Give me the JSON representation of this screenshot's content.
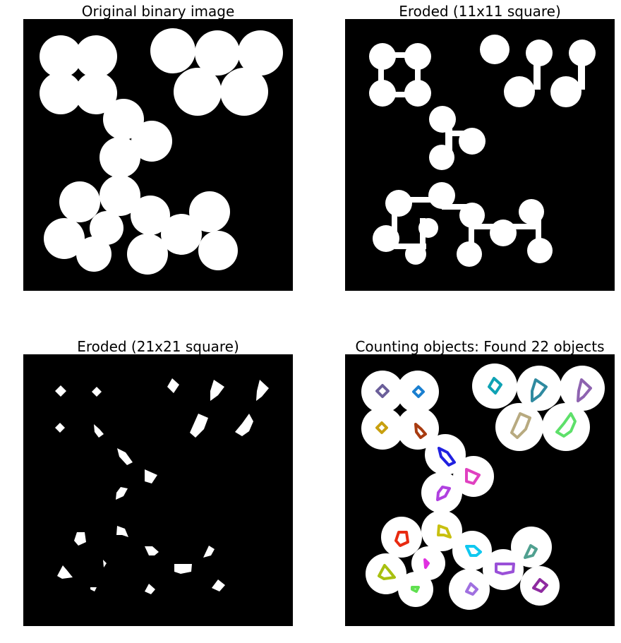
{
  "panels": [
    {
      "id": "original",
      "title": "Original binary image"
    },
    {
      "id": "eroded11",
      "title": "Eroded (11x11 square)"
    },
    {
      "id": "eroded21",
      "title": "Eroded (21x21 square)"
    },
    {
      "id": "counted",
      "title": "Counting objects: Found 22 objects"
    }
  ],
  "colors": {
    "background": "#000000",
    "foreground": "#ffffff",
    "object_outlines": [
      "#6b5f9a",
      "#1a7fd0",
      "#0ea2b4",
      "#2f8aa0",
      "#8e63b0",
      "#c8a010",
      "#a83b10",
      "#b8aa80",
      "#5ee06a",
      "#2020e0",
      "#e040c0",
      "#b040e0",
      "#c8c010",
      "#e82a10",
      "#10c8f0",
      "#50a090",
      "#a8c010",
      "#e030e0",
      "#9a50d8",
      "#a070e0",
      "#8e2aa0",
      "#60e050"
    ]
  }
}
